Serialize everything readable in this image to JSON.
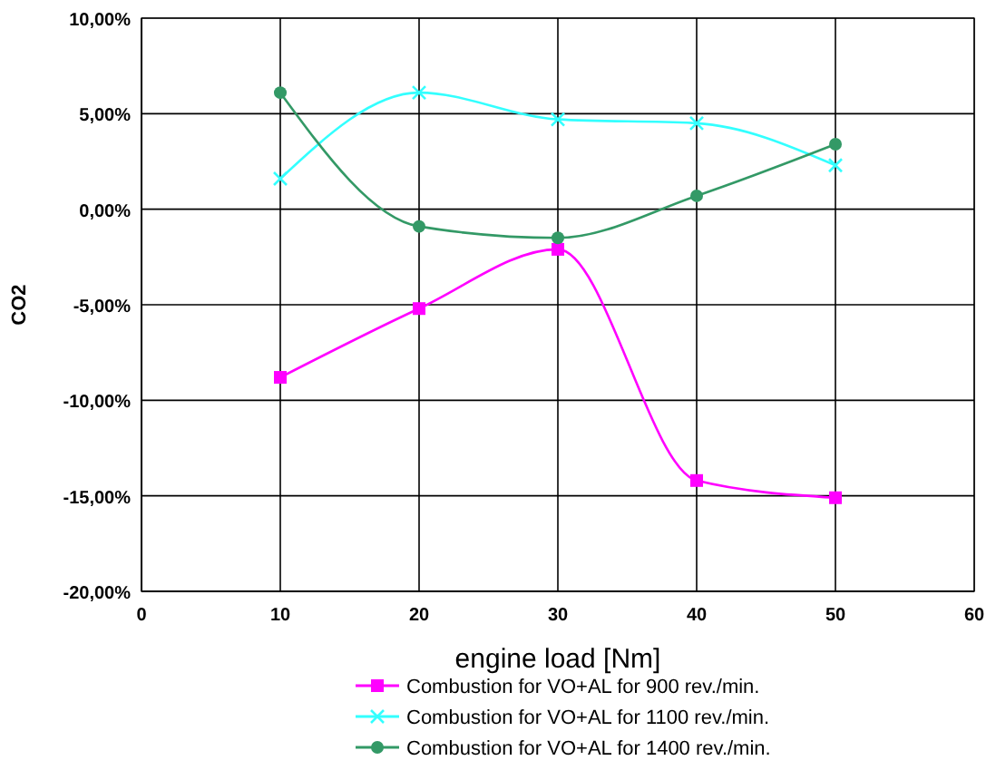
{
  "chart_data": {
    "type": "line",
    "xlabel": "engine load [Nm]",
    "ylabel": "CO2",
    "x": [
      10,
      20,
      30,
      40,
      50
    ],
    "series": [
      {
        "name": "Combustion for VO+AL for 900 rev./min.",
        "color": "#ff00ff",
        "marker": "square",
        "values": [
          -8.8,
          -5.2,
          -2.1,
          -14.2,
          -15.1
        ]
      },
      {
        "name": "Combustion for VO+AL for 1100 rev./min.",
        "color": "#33ffff",
        "marker": "cross",
        "values": [
          1.6,
          6.1,
          4.7,
          4.5,
          2.3
        ]
      },
      {
        "name": "Combustion for VO+AL for 1400 rev./min.",
        "color": "#339966",
        "marker": "circle",
        "values": [
          6.1,
          -0.9,
          -1.5,
          0.7,
          3.4
        ]
      }
    ],
    "xlim": [
      0,
      60
    ],
    "xticks": [
      0,
      10,
      20,
      30,
      40,
      50,
      60
    ],
    "ylim": [
      -20,
      10
    ],
    "yticks": [
      {
        "value": -20,
        "label": "-20,00%"
      },
      {
        "value": -15,
        "label": "-15,00%"
      },
      {
        "value": -10,
        "label": "-10,00%"
      },
      {
        "value": -5,
        "label": "-5,00%"
      },
      {
        "value": 0,
        "label": "0,00%"
      },
      {
        "value": 5,
        "label": "5,00%"
      },
      {
        "value": 10,
        "label": "10,00%"
      }
    ],
    "grid": true,
    "legend": "bottom",
    "line_style": "solid"
  }
}
